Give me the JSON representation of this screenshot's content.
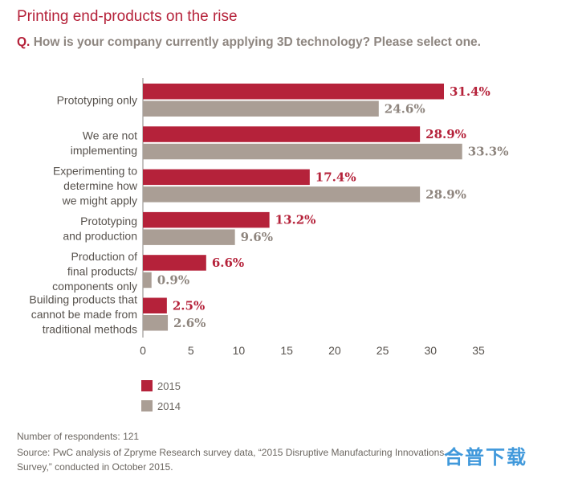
{
  "title": "Printing end-products on the rise",
  "subtitle": {
    "prefix": "Q.",
    "text": "How is your company currently applying 3D technology? Please select one."
  },
  "chart_data": {
    "type": "bar",
    "orientation": "horizontal",
    "categories": [
      [
        "Prototyping only"
      ],
      [
        "We are not",
        "implementing"
      ],
      [
        "Experimenting to",
        "determine how",
        "we might apply"
      ],
      [
        "Prototyping",
        "and production"
      ],
      [
        "Production of",
        "final products/",
        "components only"
      ],
      [
        "Building products that",
        "cannot be made from",
        "traditional methods"
      ]
    ],
    "series": [
      {
        "name": "2015",
        "values": [
          31.4,
          28.9,
          17.4,
          13.2,
          6.6,
          2.5
        ],
        "labels": [
          "31.4%",
          "28.9%",
          "17.4%",
          "13.2%",
          "6.6%",
          "2.5%"
        ]
      },
      {
        "name": "2014",
        "values": [
          24.6,
          33.3,
          28.9,
          9.6,
          0.9,
          2.6
        ],
        "labels": [
          "24.6%",
          "33.3%",
          "28.9%",
          "9.6%",
          "0.9%",
          "2.6%"
        ]
      }
    ],
    "xlim": [
      0,
      35
    ],
    "xticks": [
      "0",
      "5",
      "10",
      "15",
      "20",
      "25",
      "30",
      "35"
    ],
    "grid": false,
    "legend": "bottom-left",
    "colors": {
      "2015": "#b5223a",
      "2014": "#aa9e95"
    }
  },
  "footer": {
    "respondents": "Number of respondents: 121",
    "source_line1": "Source: PwC analysis of Zpryme Research survey data, “2015 Disruptive Manufacturing Innovations",
    "source_line2": "Survey,” conducted in October 2015."
  },
  "watermark": "合普下载"
}
